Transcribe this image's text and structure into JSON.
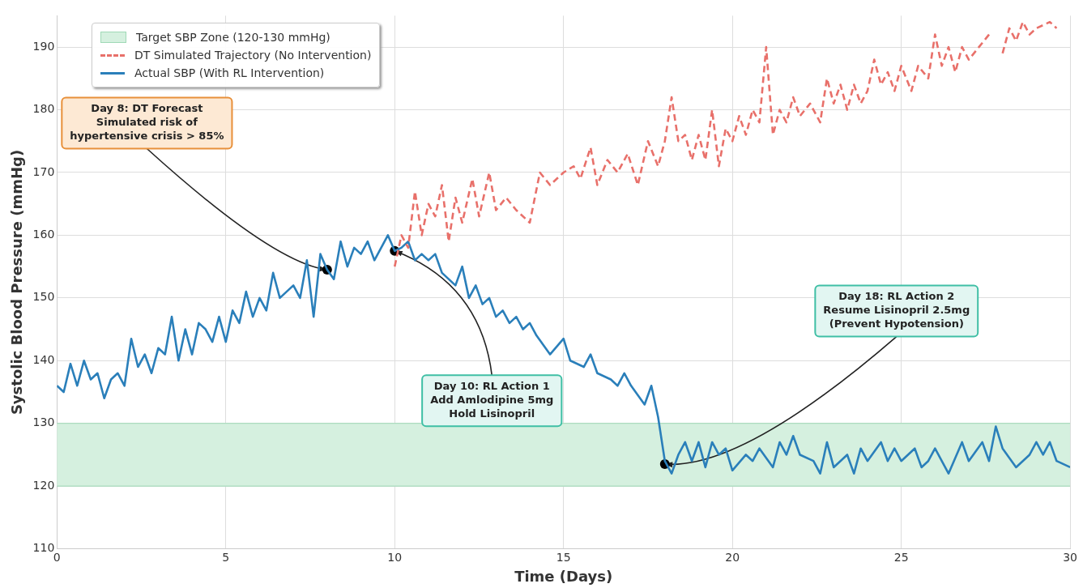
{
  "chart_data": {
    "type": "line",
    "xlabel": "Time (Days)",
    "ylabel": "Systolic Blood Pressure (mmHg)",
    "xlim": [
      0,
      30
    ],
    "xticks": [
      0,
      5,
      10,
      15,
      20,
      25,
      30
    ],
    "ylim": [
      110,
      195
    ],
    "yticks": [
      110,
      120,
      130,
      140,
      150,
      160,
      170,
      180,
      190
    ],
    "grid": true,
    "legend": "top left",
    "marker": "none",
    "bands": [
      {
        "axis": "y",
        "from": 120,
        "to": 130,
        "label": "Target SBP Zone (120-130 mmHg)",
        "color": "#d5f0df"
      }
    ],
    "series": [
      {
        "name": "DT Simulated Trajectory (No Intervention)",
        "color": "#e8706a",
        "line_style": "dashed",
        "x": [
          10,
          10.2,
          10.4,
          10.6,
          10.8,
          11,
          11.2,
          11.4,
          11.6,
          11.8,
          12,
          12.3,
          12.5,
          12.8,
          13,
          13.3,
          13.6,
          14,
          14.3,
          14.6,
          15,
          15.3,
          15.5,
          15.8,
          16,
          16.3,
          16.6,
          16.9,
          17.2,
          17.5,
          17.8,
          18,
          18.2,
          18.4,
          18.6,
          18.8,
          19,
          19.2,
          19.4,
          19.6,
          19.8,
          20,
          20.2,
          20.4,
          20.6,
          20.8,
          21,
          21.2,
          21.4,
          21.6,
          21.8,
          22,
          22.3,
          22.6,
          22.8,
          23,
          23.2,
          23.4,
          23.6,
          23.8,
          24,
          24.2,
          24.4,
          24.6,
          24.8,
          25,
          25.3,
          25.5,
          25.8,
          26,
          26.2,
          26.4,
          26.6,
          26.8,
          27,
          27.3,
          27.6,
          27.8,
          28,
          28.2,
          28.4,
          28.6,
          28.8,
          29,
          29.4,
          29.6
        ],
        "values": [
          155,
          160,
          158,
          167,
          160,
          165,
          163,
          168,
          159,
          166,
          162,
          169,
          163,
          170,
          164,
          166,
          164,
          162,
          170,
          168,
          170,
          171,
          169,
          174,
          168,
          172,
          170,
          173,
          168,
          175,
          171,
          175,
          182,
          175,
          176,
          172,
          176,
          172,
          180,
          171,
          177,
          175,
          179,
          176,
          180,
          178,
          190,
          176,
          180,
          178,
          182,
          179,
          181,
          178,
          185,
          181,
          184,
          180,
          184,
          181,
          183,
          188,
          184,
          186,
          183,
          187,
          183,
          187,
          185,
          192,
          187,
          190,
          186,
          190,
          188,
          190,
          192,
          null,
          189,
          193,
          191,
          194,
          192,
          193,
          194,
          193
        ]
      },
      {
        "name": "Actual SBP (With RL Intervention)",
        "color": "#2a7fba",
        "line_style": "solid",
        "x": [
          0,
          0.2,
          0.4,
          0.6,
          0.8,
          1,
          1.2,
          1.4,
          1.6,
          1.8,
          2,
          2.2,
          2.4,
          2.6,
          2.8,
          3,
          3.2,
          3.4,
          3.6,
          3.8,
          4,
          4.2,
          4.4,
          4.6,
          4.8,
          5,
          5.2,
          5.4,
          5.6,
          5.8,
          6,
          6.2,
          6.4,
          6.6,
          6.8,
          7,
          7.2,
          7.4,
          7.6,
          7.8,
          8,
          8.2,
          8.4,
          8.6,
          8.8,
          9,
          9.2,
          9.4,
          9.6,
          9.8,
          10,
          10.2,
          10.4,
          10.6,
          10.8,
          11,
          11.2,
          11.4,
          11.6,
          11.8,
          12,
          12.2,
          12.4,
          12.6,
          12.8,
          13,
          13.2,
          13.4,
          13.6,
          13.8,
          14,
          14.2,
          14.6,
          15,
          15.2,
          15.6,
          15.8,
          16,
          16.4,
          16.6,
          16.8,
          17,
          17.4,
          17.6,
          17.8,
          18,
          18.2,
          18.4,
          18.6,
          18.8,
          19,
          19.2,
          19.4,
          19.6,
          19.8,
          20,
          20.4,
          20.6,
          20.8,
          21.2,
          21.4,
          21.6,
          21.8,
          22,
          22.4,
          22.6,
          22.8,
          23,
          23.4,
          23.6,
          23.8,
          24,
          24.4,
          24.6,
          24.8,
          25,
          25.4,
          25.6,
          25.8,
          26,
          26.4,
          26.8,
          27,
          27.4,
          27.6,
          27.8,
          28,
          28.4,
          28.8,
          29,
          29.2,
          29.4,
          29.6,
          30
        ],
        "values": [
          136,
          135,
          139.5,
          136,
          140,
          137,
          138,
          134,
          137,
          138,
          136,
          143.5,
          139,
          141,
          138,
          142,
          141,
          147,
          140,
          145,
          141,
          146,
          145,
          143,
          147,
          143,
          148,
          146,
          151,
          147,
          150,
          148,
          154,
          150,
          151,
          152,
          150,
          156,
          147,
          157,
          154.5,
          153,
          159,
          155,
          158,
          157,
          159,
          156,
          158,
          160,
          157.5,
          158,
          159,
          156,
          157,
          156,
          157,
          154,
          153,
          152,
          155,
          150,
          152,
          149,
          150,
          147,
          148,
          146,
          147,
          145,
          146,
          144,
          141,
          143.5,
          140,
          139,
          141,
          138,
          137,
          136,
          138,
          136,
          133,
          136,
          131,
          124,
          122,
          125,
          127,
          124,
          127,
          123,
          127,
          125,
          126,
          122.5,
          125,
          124,
          126,
          123,
          127,
          125,
          128,
          125,
          124,
          122,
          127,
          123,
          125,
          122,
          126,
          124,
          127,
          124,
          126,
          124,
          126,
          123,
          124,
          126,
          122,
          127,
          124,
          127,
          124,
          129.5,
          126,
          123,
          125,
          127,
          125,
          127,
          124,
          123
        ]
      }
    ],
    "annotations": [
      {
        "text": "Day 8: DT Forecast\nSimulated risk of\nhypertensive crisis > 85%",
        "x": 8,
        "y": 154.5
      },
      {
        "text": "Day 10: RL Action 1\nAdd Amlodipine 5mg\nHold Lisinopril",
        "x": 10,
        "y": 157.5
      },
      {
        "text": "Day 18: RL Action 2\nResume Lisinopril 2.5mg\n(Prevent Hypotension)",
        "x": 18,
        "y": 123.5
      }
    ]
  }
}
